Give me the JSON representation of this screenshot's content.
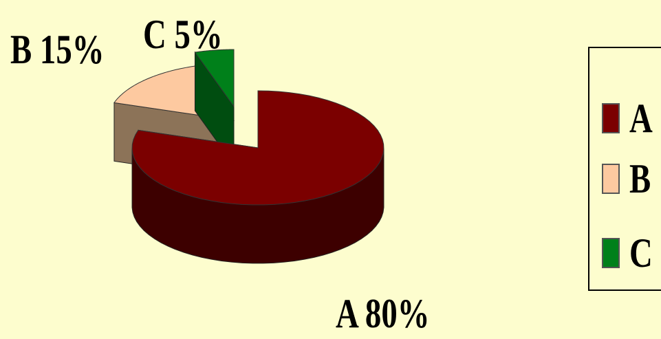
{
  "chart_data": {
    "type": "pie",
    "title": "",
    "slices": [
      {
        "name": "A",
        "value": 80,
        "label": "A 80%",
        "color": "#7b0000",
        "side_color": "#3d0000"
      },
      {
        "name": "B",
        "value": 15,
        "label": "B 15%",
        "color": "#fdc9a0",
        "side_color": "#8c7358"
      },
      {
        "name": "C",
        "value": 5,
        "label": "C 5%",
        "color": "#00801a",
        "side_color": "#004d10"
      }
    ],
    "legend": {
      "placement": "right",
      "entries": [
        "A",
        "B",
        "C"
      ]
    }
  }
}
